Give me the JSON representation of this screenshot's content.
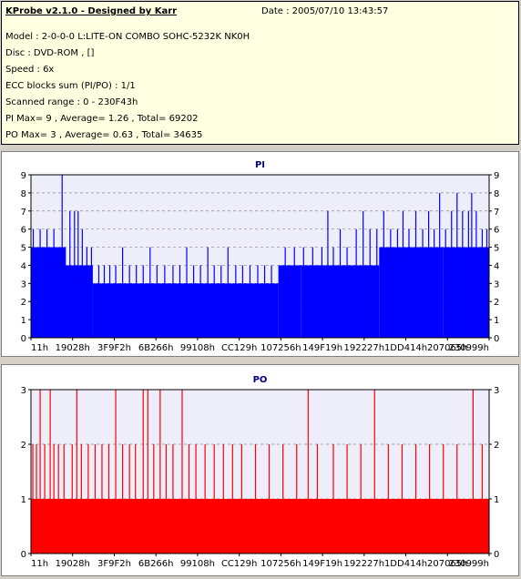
{
  "info": {
    "app_title": "KProbe v2.1.0 - Designed by Karr",
    "date": "Date : 2005/07/10 13:43:57",
    "model": "Model : 2-0-0-0 L:LITE-ON COMBO SOHC-5232K NK0H",
    "disc": "Disc : DVD-ROM ,  []",
    "speed": "Speed : 6x",
    "ecc": "ECC blocks sum (PI/PO) : 1/1",
    "range": "Scanned range : 0 - 230F43h",
    "pi_stats": "PI Max= 9 , Average= 1.26 , Total= 69202",
    "po_stats": "PO Max= 3 , Average= 0.63 , Total= 34635"
  },
  "chart_data": [
    {
      "type": "bar",
      "title": "PI",
      "ylim": [
        0,
        9
      ],
      "yticks": [
        "0",
        "1",
        "2",
        "3",
        "4",
        "5",
        "6",
        "7",
        "8",
        "9"
      ],
      "xtick_labels": [
        "11h",
        "19028h",
        "3F9F2h",
        "6B266h",
        "99108h",
        "CC129h",
        "107256h",
        "149F19h",
        "192227h",
        "1DD414h",
        "207065h",
        "230999h"
      ],
      "grid": true,
      "color": "#0000ff",
      "baseline_segments": [
        {
          "from": 0.0,
          "to": 0.075,
          "value": 5
        },
        {
          "from": 0.075,
          "to": 0.135,
          "value": 4
        },
        {
          "from": 0.135,
          "to": 0.54,
          "value": 3
        },
        {
          "from": 0.54,
          "to": 0.59,
          "value": 4
        },
        {
          "from": 0.59,
          "to": 0.76,
          "value": 4
        },
        {
          "from": 0.76,
          "to": 0.9,
          "value": 5
        },
        {
          "from": 0.9,
          "to": 1.0,
          "value": 5
        }
      ],
      "spikes": [
        {
          "x": 0.005,
          "value": 6
        },
        {
          "x": 0.02,
          "value": 6
        },
        {
          "x": 0.035,
          "value": 6
        },
        {
          "x": 0.05,
          "value": 6
        },
        {
          "x": 0.075,
          "value": 5
        },
        {
          "x": 0.085,
          "value": 7
        },
        {
          "x": 0.095,
          "value": 7
        },
        {
          "x": 0.103,
          "value": 7
        },
        {
          "x": 0.112,
          "value": 6
        },
        {
          "x": 0.122,
          "value": 5
        },
        {
          "x": 0.132,
          "value": 5
        },
        {
          "x": 0.148,
          "value": 4
        },
        {
          "x": 0.16,
          "value": 4
        },
        {
          "x": 0.172,
          "value": 4
        },
        {
          "x": 0.185,
          "value": 4
        },
        {
          "x": 0.2,
          "value": 5
        },
        {
          "x": 0.215,
          "value": 4
        },
        {
          "x": 0.23,
          "value": 4
        },
        {
          "x": 0.245,
          "value": 4
        },
        {
          "x": 0.26,
          "value": 5
        },
        {
          "x": 0.275,
          "value": 4
        },
        {
          "x": 0.292,
          "value": 4
        },
        {
          "x": 0.31,
          "value": 4
        },
        {
          "x": 0.325,
          "value": 4
        },
        {
          "x": 0.34,
          "value": 5
        },
        {
          "x": 0.355,
          "value": 4
        },
        {
          "x": 0.37,
          "value": 4
        },
        {
          "x": 0.386,
          "value": 5
        },
        {
          "x": 0.4,
          "value": 4
        },
        {
          "x": 0.415,
          "value": 4
        },
        {
          "x": 0.43,
          "value": 5
        },
        {
          "x": 0.447,
          "value": 4
        },
        {
          "x": 0.462,
          "value": 4
        },
        {
          "x": 0.478,
          "value": 4
        },
        {
          "x": 0.495,
          "value": 4
        },
        {
          "x": 0.51,
          "value": 4
        },
        {
          "x": 0.525,
          "value": 4
        },
        {
          "x": 0.555,
          "value": 5
        },
        {
          "x": 0.575,
          "value": 5
        },
        {
          "x": 0.595,
          "value": 5
        },
        {
          "x": 0.615,
          "value": 5
        },
        {
          "x": 0.635,
          "value": 5
        },
        {
          "x": 0.648,
          "value": 7
        },
        {
          "x": 0.66,
          "value": 5
        },
        {
          "x": 0.675,
          "value": 6
        },
        {
          "x": 0.69,
          "value": 5
        },
        {
          "x": 0.71,
          "value": 6
        },
        {
          "x": 0.725,
          "value": 7
        },
        {
          "x": 0.74,
          "value": 6
        },
        {
          "x": 0.755,
          "value": 6
        },
        {
          "x": 0.77,
          "value": 7
        },
        {
          "x": 0.785,
          "value": 6
        },
        {
          "x": 0.8,
          "value": 6
        },
        {
          "x": 0.812,
          "value": 7
        },
        {
          "x": 0.825,
          "value": 6
        },
        {
          "x": 0.84,
          "value": 7
        },
        {
          "x": 0.855,
          "value": 6
        },
        {
          "x": 0.868,
          "value": 7
        },
        {
          "x": 0.88,
          "value": 6
        },
        {
          "x": 0.892,
          "value": 8
        },
        {
          "x": 0.905,
          "value": 6
        },
        {
          "x": 0.918,
          "value": 7
        },
        {
          "x": 0.93,
          "value": 8
        },
        {
          "x": 0.942,
          "value": 7
        },
        {
          "x": 0.955,
          "value": 7
        },
        {
          "x": 0.962,
          "value": 8
        },
        {
          "x": 0.972,
          "value": 7
        },
        {
          "x": 0.985,
          "value": 6
        },
        {
          "x": 0.995,
          "value": 6
        },
        {
          "x": 0.068,
          "value": 9
        }
      ]
    },
    {
      "type": "bar",
      "title": "PO",
      "ylim": [
        0,
        3
      ],
      "yticks": [
        "0",
        "1",
        "2",
        "3"
      ],
      "xtick_labels": [
        "11h",
        "19028h",
        "3F9F2h",
        "6B266h",
        "99108h",
        "CC129h",
        "107256h",
        "149F19h",
        "192227h",
        "1DD414h",
        "207065h",
        "230999h"
      ],
      "grid": true,
      "color": "#ff0000",
      "baseline_segments": [
        {
          "from": 0.0,
          "to": 1.0,
          "value": 1
        }
      ],
      "spikes": [
        {
          "x": 0.004,
          "value": 2
        },
        {
          "x": 0.012,
          "value": 2
        },
        {
          "x": 0.02,
          "value": 3
        },
        {
          "x": 0.03,
          "value": 2
        },
        {
          "x": 0.042,
          "value": 3
        },
        {
          "x": 0.05,
          "value": 2
        },
        {
          "x": 0.06,
          "value": 2
        },
        {
          "x": 0.072,
          "value": 2
        },
        {
          "x": 0.09,
          "value": 2
        },
        {
          "x": 0.1,
          "value": 3
        },
        {
          "x": 0.11,
          "value": 2
        },
        {
          "x": 0.125,
          "value": 2
        },
        {
          "x": 0.14,
          "value": 2
        },
        {
          "x": 0.155,
          "value": 2
        },
        {
          "x": 0.17,
          "value": 2
        },
        {
          "x": 0.185,
          "value": 3
        },
        {
          "x": 0.2,
          "value": 2
        },
        {
          "x": 0.215,
          "value": 2
        },
        {
          "x": 0.228,
          "value": 2
        },
        {
          "x": 0.245,
          "value": 3
        },
        {
          "x": 0.255,
          "value": 3
        },
        {
          "x": 0.268,
          "value": 2
        },
        {
          "x": 0.282,
          "value": 3
        },
        {
          "x": 0.295,
          "value": 2
        },
        {
          "x": 0.31,
          "value": 2
        },
        {
          "x": 0.33,
          "value": 3
        },
        {
          "x": 0.345,
          "value": 2
        },
        {
          "x": 0.36,
          "value": 2
        },
        {
          "x": 0.38,
          "value": 2
        },
        {
          "x": 0.4,
          "value": 2
        },
        {
          "x": 0.42,
          "value": 2
        },
        {
          "x": 0.44,
          "value": 2
        },
        {
          "x": 0.46,
          "value": 2
        },
        {
          "x": 0.49,
          "value": 2
        },
        {
          "x": 0.52,
          "value": 2
        },
        {
          "x": 0.55,
          "value": 2
        },
        {
          "x": 0.58,
          "value": 2
        },
        {
          "x": 0.605,
          "value": 3
        },
        {
          "x": 0.625,
          "value": 2
        },
        {
          "x": 0.66,
          "value": 2
        },
        {
          "x": 0.69,
          "value": 2
        },
        {
          "x": 0.72,
          "value": 2
        },
        {
          "x": 0.75,
          "value": 3
        },
        {
          "x": 0.78,
          "value": 2
        },
        {
          "x": 0.81,
          "value": 2
        },
        {
          "x": 0.84,
          "value": 2
        },
        {
          "x": 0.87,
          "value": 2
        },
        {
          "x": 0.9,
          "value": 2
        },
        {
          "x": 0.93,
          "value": 2
        },
        {
          "x": 0.965,
          "value": 3
        },
        {
          "x": 0.985,
          "value": 2
        }
      ]
    }
  ]
}
